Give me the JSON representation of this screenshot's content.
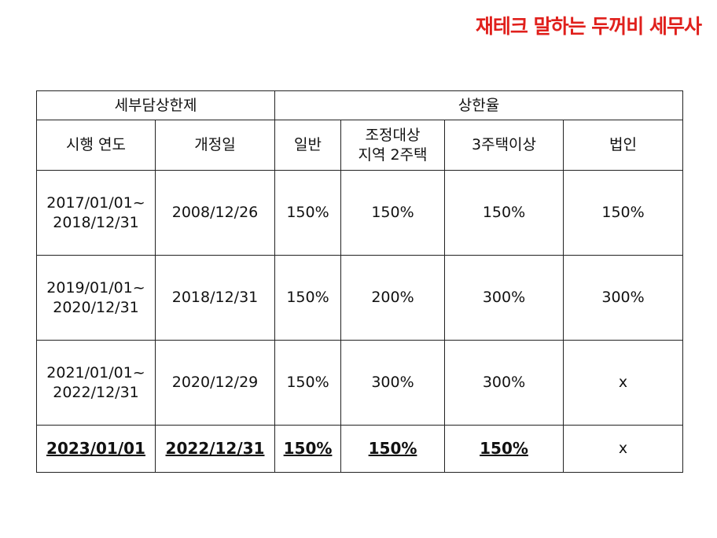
{
  "brand": "재테크 말하는 두꺼비 세무사",
  "brand_color": "#e0201c",
  "table": {
    "group_headers": {
      "left": "세부담상한제",
      "right": "상한율"
    },
    "column_headers": [
      {
        "line1": "시행 연도",
        "line2": ""
      },
      {
        "line1": "개정일",
        "line2": ""
      },
      {
        "line1": "일반",
        "line2": ""
      },
      {
        "line1": "조정대상",
        "line2": "지역 2주택"
      },
      {
        "line1": "3주택이상",
        "line2": ""
      },
      {
        "line1": "법인",
        "line2": ""
      }
    ],
    "rows": [
      {
        "period_start": "2017/01/01~",
        "period_end": "2018/12/31",
        "amended": "2008/12/26",
        "general": "150%",
        "adjusted_2house": "150%",
        "three_plus": "150%",
        "corporate": "150%"
      },
      {
        "period_start": "2019/01/01~",
        "period_end": "2020/12/31",
        "amended": "2018/12/31",
        "general": "150%",
        "adjusted_2house": "200%",
        "three_plus": "300%",
        "corporate": "300%"
      },
      {
        "period_start": "2021/01/01~",
        "period_end": "2022/12/31",
        "amended": "2020/12/29",
        "general": "150%",
        "adjusted_2house": "300%",
        "three_plus": "300%",
        "corporate": "x"
      },
      {
        "period_start": "2023/01/01",
        "period_end": "",
        "amended": "2022/12/31",
        "general": "150%",
        "adjusted_2house": "150%",
        "three_plus": "150%",
        "corporate": "x"
      }
    ]
  }
}
